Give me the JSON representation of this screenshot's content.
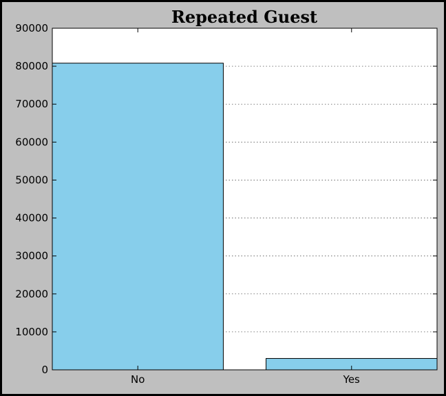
{
  "chart_data": {
    "type": "bar",
    "title": "Repeated Guest",
    "categories": [
      "No",
      "Yes"
    ],
    "values": [
      80800,
      3000
    ],
    "xlabel": "",
    "ylabel": "",
    "ylim": [
      0,
      90000
    ],
    "yticks": [
      "0",
      "10000",
      "20000",
      "30000",
      "40000",
      "50000",
      "60000",
      "70000",
      "80000",
      "90000"
    ],
    "grid": "horizontal dotted",
    "colors": {
      "bar_fill": "#87ceeb",
      "bar_edge": "#000000",
      "figure_background": "#bfbfbf",
      "plot_background": "#ffffff"
    }
  }
}
